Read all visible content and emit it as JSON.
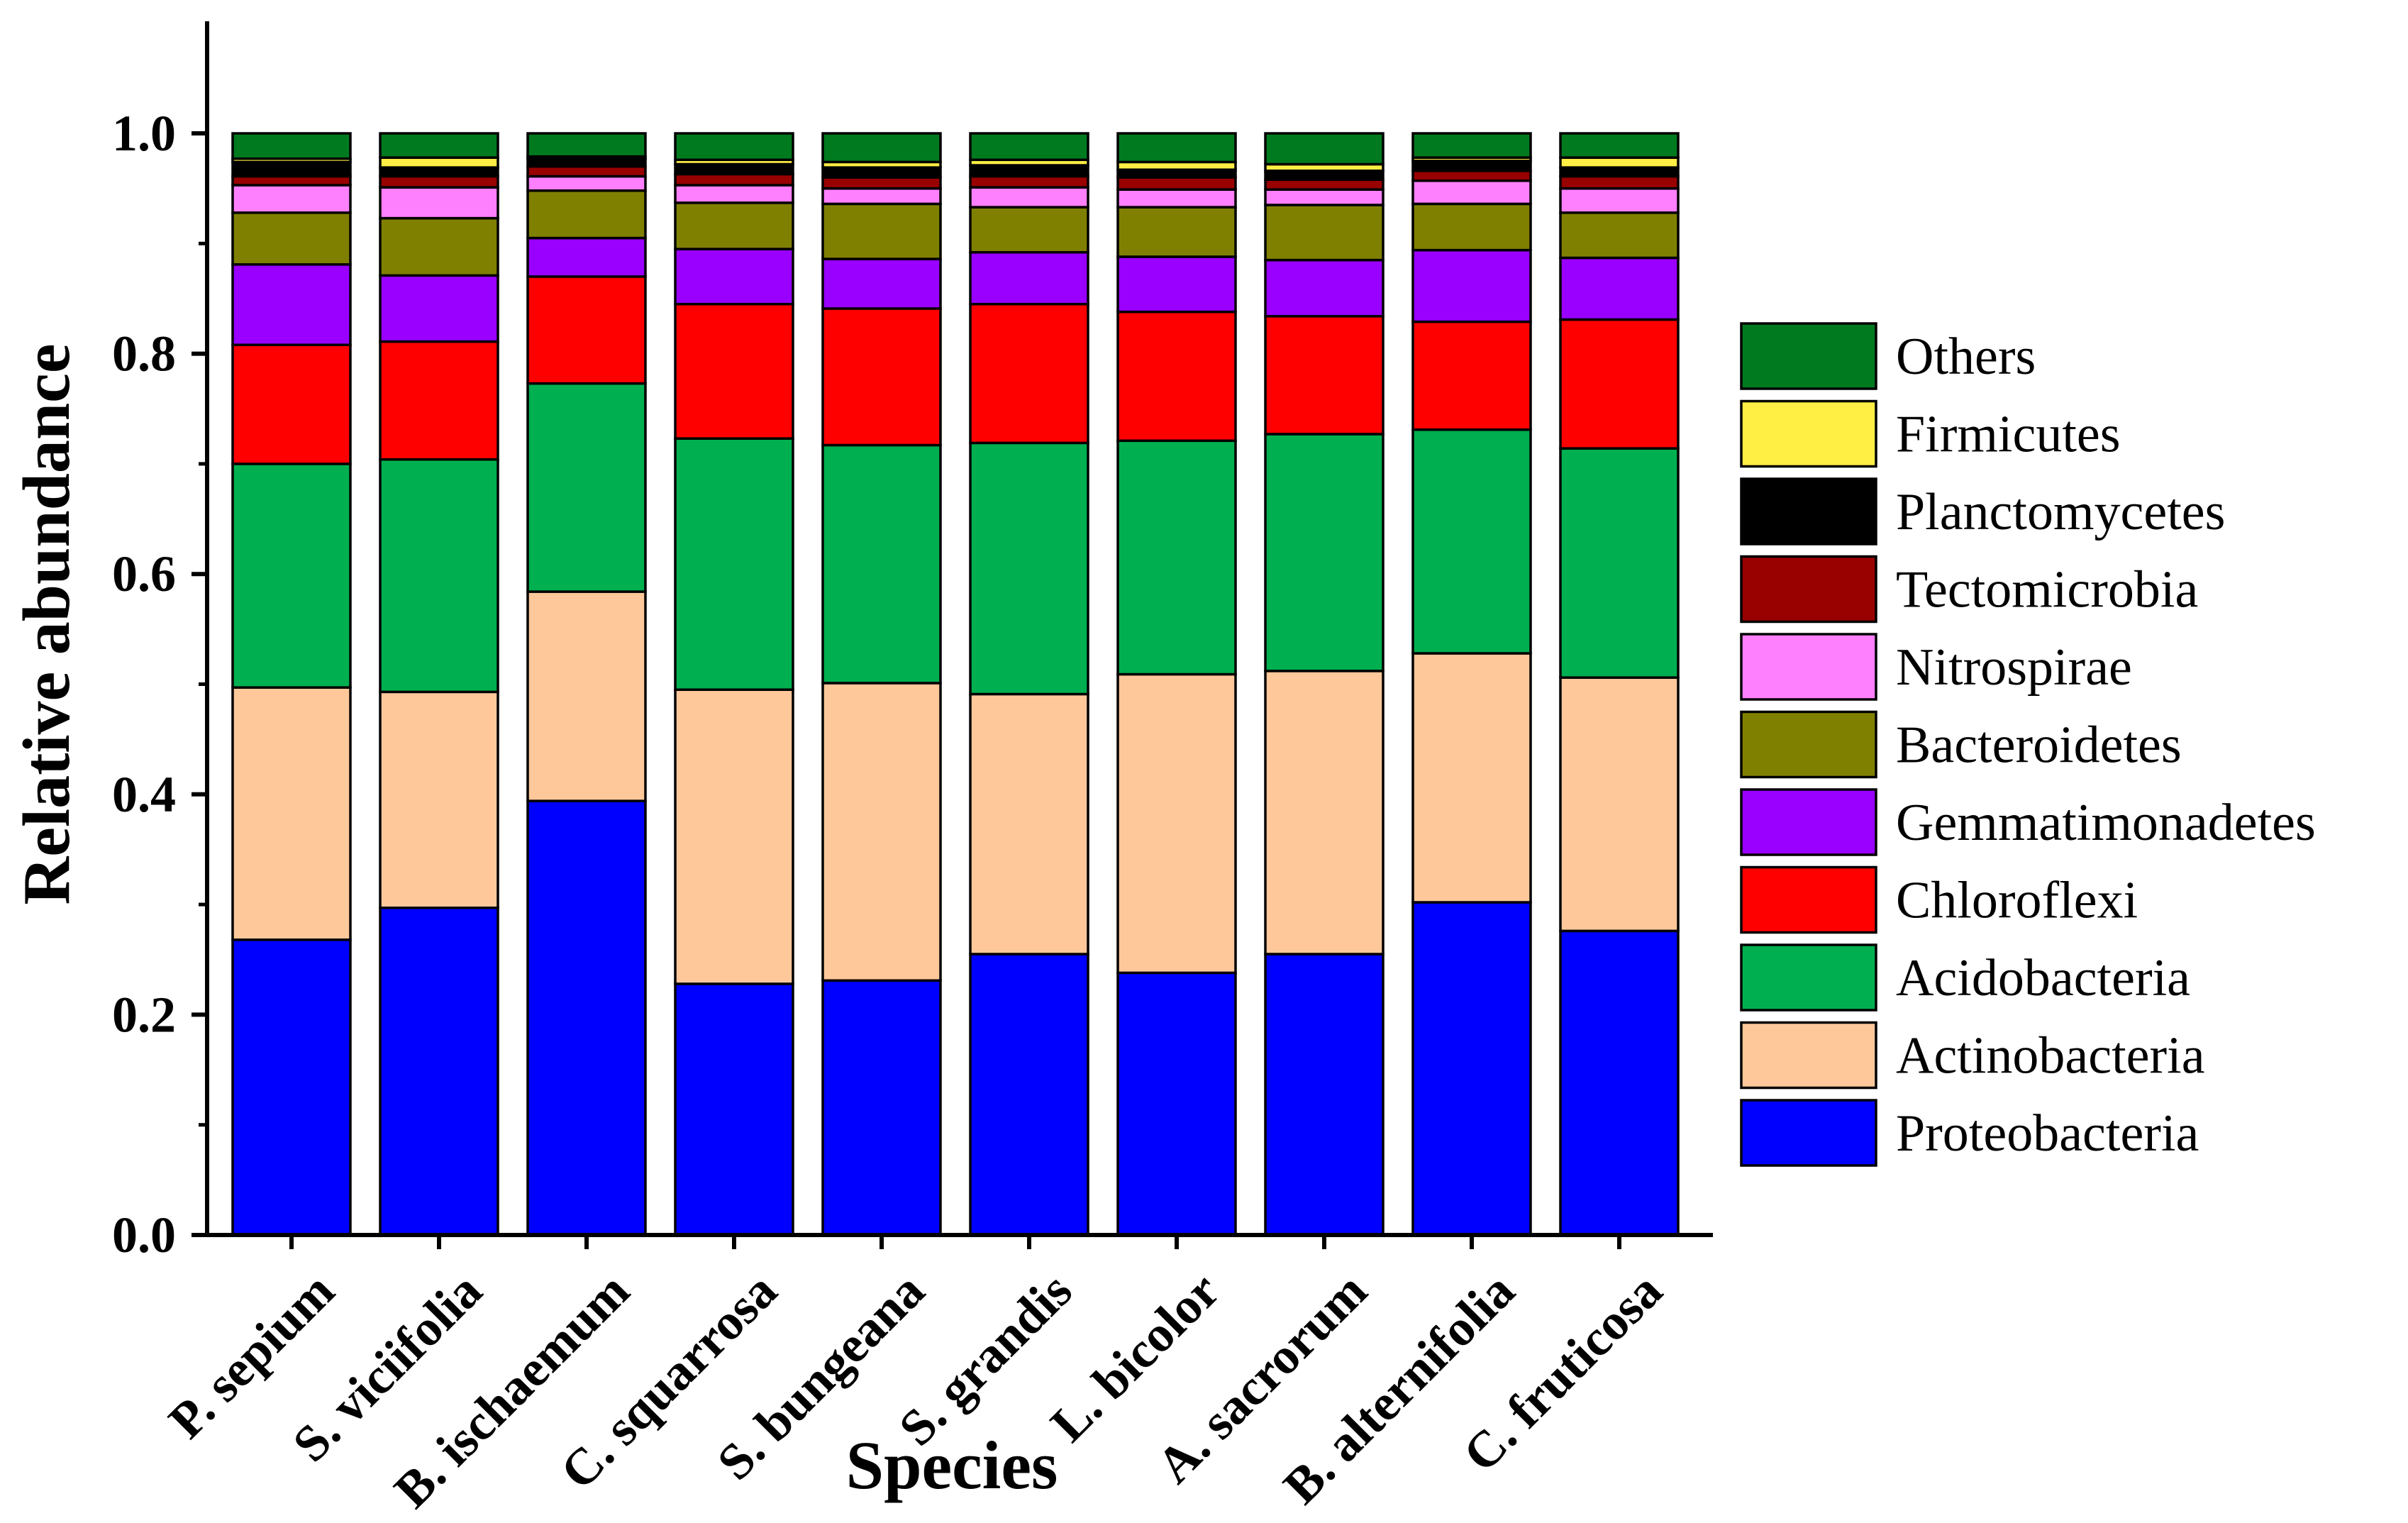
{
  "chart_data": {
    "type": "bar",
    "stacked": true,
    "title": "",
    "xlabel": "Species",
    "ylabel": "Relative abundance",
    "ylim": [
      0,
      1.1
    ],
    "yticks": [
      "0.0",
      "0.2",
      "0.4",
      "0.6",
      "0.8",
      "1.0"
    ],
    "categories": [
      "P. sepium",
      "S. viciifolia",
      "B. ischaemum",
      "C. squarrosa",
      "S. bungeana",
      "S. grandis",
      "L. bicolor",
      "A. sacrorum",
      "B. alternifolia",
      "C. fruticosa"
    ],
    "legend_position": "right",
    "series": [
      {
        "name": "Proteobacteria",
        "color": "#0000FF",
        "values": [
          0.268,
          0.297,
          0.394,
          0.228,
          0.231,
          0.255,
          0.238,
          0.255,
          0.302,
          0.276
        ]
      },
      {
        "name": "Actinobacteria",
        "color": "#FFC89B",
        "values": [
          0.229,
          0.196,
          0.19,
          0.267,
          0.27,
          0.236,
          0.271,
          0.257,
          0.226,
          0.23
        ]
      },
      {
        "name": "Acidobacteria",
        "color": "#00B050",
        "values": [
          0.203,
          0.211,
          0.189,
          0.228,
          0.216,
          0.228,
          0.212,
          0.215,
          0.203,
          0.208
        ]
      },
      {
        "name": "Chloroflexi",
        "color": "#FF0000",
        "values": [
          0.108,
          0.107,
          0.097,
          0.122,
          0.124,
          0.126,
          0.117,
          0.107,
          0.098,
          0.117
        ]
      },
      {
        "name": "Gemmatimonadetes",
        "color": "#9900FF",
        "values": [
          0.073,
          0.06,
          0.035,
          0.05,
          0.045,
          0.047,
          0.05,
          0.051,
          0.065,
          0.056
        ]
      },
      {
        "name": "Bacteroidetes",
        "color": "#808000",
        "values": [
          0.047,
          0.052,
          0.043,
          0.042,
          0.05,
          0.041,
          0.045,
          0.05,
          0.042,
          0.041
        ]
      },
      {
        "name": "Nitrospirae",
        "color": "#FF80FF",
        "values": [
          0.025,
          0.028,
          0.013,
          0.016,
          0.014,
          0.018,
          0.016,
          0.014,
          0.021,
          0.022
        ]
      },
      {
        "name": "Tectomicrobia",
        "color": "#990000",
        "values": [
          0.008,
          0.01,
          0.009,
          0.01,
          0.01,
          0.01,
          0.011,
          0.009,
          0.009,
          0.011
        ]
      },
      {
        "name": "Planctomycetes",
        "color": "#000000",
        "values": [
          0.013,
          0.008,
          0.007,
          0.009,
          0.009,
          0.01,
          0.007,
          0.008,
          0.009,
          0.008
        ]
      },
      {
        "name": "Firmicutes",
        "color": "#FFEE44",
        "values": [
          0.003,
          0.009,
          0.002,
          0.004,
          0.005,
          0.005,
          0.007,
          0.006,
          0.003,
          0.009
        ]
      },
      {
        "name": "Others",
        "color": "#007A1F",
        "values": [
          0.023,
          0.022,
          0.021,
          0.024,
          0.026,
          0.024,
          0.026,
          0.028,
          0.022,
          0.022
        ]
      }
    ]
  }
}
